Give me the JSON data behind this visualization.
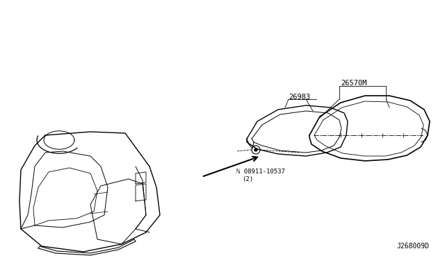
{
  "title": "",
  "background_color": "#ffffff",
  "line_color": "#000000",
  "diagram_id": "J268009D",
  "parts": [
    {
      "id": "26570M",
      "label": "26570M"
    },
    {
      "id": "26983",
      "label": "26983"
    },
    {
      "id": "08911-10537",
      "label": "ℕ 08911-10537\n(2)"
    }
  ],
  "fig_width": 6.4,
  "fig_height": 3.72,
  "dpi": 100
}
